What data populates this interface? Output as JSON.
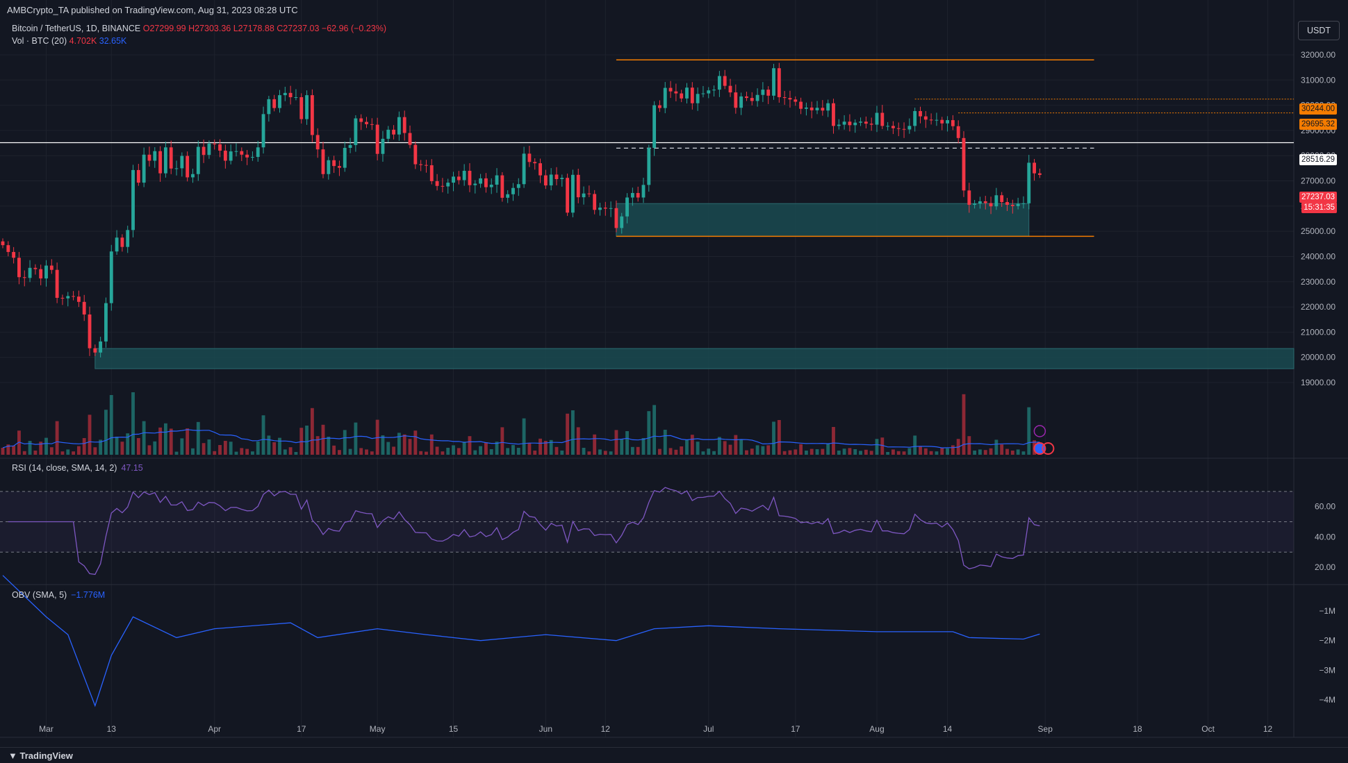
{
  "publisher_line": "AMBCrypto_TA published on TradingView.com, Aug 31, 2023 08:28 UTC",
  "symbol": {
    "title": "Bitcoin / TetherUS, 1D, BINANCE",
    "ohlc": "O27299.99 H27303.36 L27178.88 C27237.03 −62.96 (−0.23%)"
  },
  "volume_indicator": {
    "label": "Vol · BTC (20)",
    "value1": "4.702K",
    "value2": "32.65K"
  },
  "rsi_indicator": {
    "label": "RSI (14, close, SMA, 14, 2)",
    "value": "47.15"
  },
  "obv_indicator": {
    "label": "OBV (SMA, 5)",
    "value": "−1.776M"
  },
  "currency_button": "USDT",
  "footer_brand": "TradingView",
  "colors": {
    "bg": "#131722",
    "up": "#26a69a",
    "down": "#f23645",
    "orange": "#f57c00",
    "zone": "#1d4d55",
    "rsi": "#7e57c2",
    "obv": "#2962ff",
    "grid": "#1e222d"
  },
  "chart_data": [
    {
      "type": "candlestick",
      "title": "Bitcoin / TetherUS, 1D, BINANCE",
      "y_ticks": [
        32000,
        31000,
        30000,
        29000,
        28000,
        27000,
        26000,
        25000,
        24000,
        23000,
        22000,
        21000,
        20000,
        19000
      ],
      "y_tick_labels": [
        "32000.00",
        "31000.00",
        "30000.00",
        "29000.00",
        "28000.00",
        "27000.00",
        "26000.00",
        "25000.00",
        "24000.00",
        "23000.00",
        "22000.00",
        "21000.00",
        "20000.00",
        "19000.00"
      ],
      "x_tick_labels": [
        "Mar",
        "13",
        "Apr",
        "17",
        "May",
        "15",
        "Jun",
        "12",
        "Jul",
        "17",
        "Aug",
        "14",
        "Sep",
        "18",
        "Oct",
        "12"
      ],
      "x_tick_dates": [
        "2023-03-01",
        "2023-03-13",
        "2023-04-01",
        "2023-04-17",
        "2023-05-01",
        "2023-05-15",
        "2023-06-01",
        "2023-06-12",
        "2023-07-01",
        "2023-07-17",
        "2023-08-01",
        "2023-08-14",
        "2023-09-01",
        "2023-09-18",
        "2023-10-01",
        "2023-10-12"
      ],
      "date_range": [
        "2023-02-21",
        "2023-10-15"
      ],
      "closes": [
        [
          "2023-02-21",
          24450
        ],
        [
          "2023-02-22",
          24180
        ],
        [
          "2023-02-23",
          23950
        ],
        [
          "2023-02-24",
          23180
        ],
        [
          "2023-02-25",
          23150
        ],
        [
          "2023-02-26",
          23550
        ],
        [
          "2023-02-27",
          23500
        ],
        [
          "2023-02-28",
          23130
        ],
        [
          "2023-03-01",
          23640
        ],
        [
          "2023-03-02",
          23470
        ],
        [
          "2023-03-03",
          22360
        ],
        [
          "2023-03-04",
          22340
        ],
        [
          "2023-03-05",
          22430
        ],
        [
          "2023-03-06",
          22410
        ],
        [
          "2023-03-07",
          22200
        ],
        [
          "2023-03-08",
          21700
        ],
        [
          "2023-03-09",
          20360
        ],
        [
          "2023-03-10",
          20190
        ],
        [
          "2023-03-11",
          20630
        ],
        [
          "2023-03-12",
          22150
        ],
        [
          "2023-03-13",
          24200
        ],
        [
          "2023-03-14",
          24750
        ],
        [
          "2023-03-15",
          24380
        ],
        [
          "2023-03-16",
          25050
        ],
        [
          "2023-03-17",
          27430
        ],
        [
          "2023-03-18",
          26930
        ],
        [
          "2023-03-19",
          28040
        ],
        [
          "2023-03-20",
          27800
        ],
        [
          "2023-03-21",
          28180
        ],
        [
          "2023-03-22",
          27300
        ],
        [
          "2023-03-23",
          28330
        ],
        [
          "2023-03-24",
          27490
        ],
        [
          "2023-03-25",
          27500
        ],
        [
          "2023-03-26",
          27990
        ],
        [
          "2023-03-27",
          27140
        ],
        [
          "2023-03-28",
          27270
        ],
        [
          "2023-03-29",
          28350
        ],
        [
          "2023-03-30",
          28030
        ],
        [
          "2023-03-31",
          28480
        ],
        [
          "2023-04-01",
          28450
        ],
        [
          "2023-04-02",
          28200
        ],
        [
          "2023-04-03",
          27800
        ],
        [
          "2023-04-04",
          28170
        ],
        [
          "2023-04-05",
          28180
        ],
        [
          "2023-04-06",
          28040
        ],
        [
          "2023-04-07",
          27930
        ],
        [
          "2023-04-08",
          27950
        ],
        [
          "2023-04-09",
          28330
        ],
        [
          "2023-04-10",
          29650
        ],
        [
          "2023-04-11",
          30240
        ],
        [
          "2023-04-12",
          29890
        ],
        [
          "2023-04-13",
          30400
        ],
        [
          "2023-04-14",
          30490
        ],
        [
          "2023-04-15",
          30320
        ],
        [
          "2023-04-16",
          30320
        ],
        [
          "2023-04-17",
          29450
        ],
        [
          "2023-04-18",
          30400
        ],
        [
          "2023-04-19",
          28820
        ],
        [
          "2023-04-20",
          28250
        ],
        [
          "2023-04-21",
          27270
        ],
        [
          "2023-04-22",
          27820
        ],
        [
          "2023-04-23",
          27590
        ],
        [
          "2023-04-24",
          27520
        ],
        [
          "2023-04-25",
          28310
        ],
        [
          "2023-04-26",
          28420
        ],
        [
          "2023-04-27",
          29480
        ],
        [
          "2023-04-28",
          29340
        ],
        [
          "2023-04-29",
          29250
        ],
        [
          "2023-04-30",
          29230
        ],
        [
          "2023-05-01",
          28070
        ],
        [
          "2023-05-02",
          28670
        ],
        [
          "2023-05-03",
          29030
        ],
        [
          "2023-05-04",
          28840
        ],
        [
          "2023-05-05",
          29530
        ],
        [
          "2023-05-06",
          28900
        ],
        [
          "2023-05-07",
          28430
        ],
        [
          "2023-05-08",
          27660
        ],
        [
          "2023-05-09",
          27630
        ],
        [
          "2023-05-10",
          27620
        ],
        [
          "2023-05-11",
          26990
        ],
        [
          "2023-05-12",
          26800
        ],
        [
          "2023-05-13",
          26780
        ],
        [
          "2023-05-14",
          26930
        ],
        [
          "2023-05-15",
          27170
        ],
        [
          "2023-05-16",
          27030
        ],
        [
          "2023-05-17",
          27400
        ],
        [
          "2023-05-18",
          26830
        ],
        [
          "2023-05-19",
          26890
        ],
        [
          "2023-05-20",
          27100
        ],
        [
          "2023-05-21",
          26750
        ],
        [
          "2023-05-22",
          26850
        ],
        [
          "2023-05-23",
          27220
        ],
        [
          "2023-05-24",
          26330
        ],
        [
          "2023-05-25",
          26470
        ],
        [
          "2023-05-26",
          26720
        ],
        [
          "2023-05-27",
          26870
        ],
        [
          "2023-05-28",
          28080
        ],
        [
          "2023-05-29",
          27750
        ],
        [
          "2023-05-30",
          27700
        ],
        [
          "2023-05-31",
          27220
        ],
        [
          "2023-06-01",
          26820
        ],
        [
          "2023-06-02",
          27250
        ],
        [
          "2023-06-03",
          27070
        ],
        [
          "2023-06-04",
          27120
        ],
        [
          "2023-06-05",
          25740
        ],
        [
          "2023-06-06",
          27240
        ],
        [
          "2023-06-07",
          26350
        ],
        [
          "2023-06-08",
          26500
        ],
        [
          "2023-06-09",
          26480
        ],
        [
          "2023-06-10",
          25850
        ],
        [
          "2023-06-11",
          25940
        ],
        [
          "2023-06-12",
          25900
        ],
        [
          "2023-06-13",
          25920
        ],
        [
          "2023-06-14",
          25130
        ],
        [
          "2023-06-15",
          25590
        ],
        [
          "2023-06-16",
          26340
        ],
        [
          "2023-06-17",
          26520
        ],
        [
          "2023-06-18",
          26340
        ],
        [
          "2023-06-19",
          26840
        ],
        [
          "2023-06-20",
          28310
        ],
        [
          "2023-06-21",
          30000
        ],
        [
          "2023-06-22",
          29890
        ],
        [
          "2023-06-23",
          30690
        ],
        [
          "2023-06-24",
          30550
        ],
        [
          "2023-06-25",
          30470
        ],
        [
          "2023-06-26",
          30270
        ],
        [
          "2023-06-27",
          30700
        ],
        [
          "2023-06-28",
          30080
        ],
        [
          "2023-06-29",
          30450
        ],
        [
          "2023-06-30",
          30470
        ],
        [
          "2023-07-01",
          30590
        ],
        [
          "2023-07-02",
          30620
        ],
        [
          "2023-07-03",
          31160
        ],
        [
          "2023-07-04",
          30770
        ],
        [
          "2023-07-05",
          30510
        ],
        [
          "2023-07-06",
          29900
        ],
        [
          "2023-07-07",
          30350
        ],
        [
          "2023-07-08",
          30290
        ],
        [
          "2023-07-09",
          30170
        ],
        [
          "2023-07-10",
          30410
        ],
        [
          "2023-07-11",
          30620
        ],
        [
          "2023-07-12",
          30380
        ],
        [
          "2023-07-13",
          31470
        ],
        [
          "2023-07-14",
          30320
        ],
        [
          "2023-07-15",
          30290
        ],
        [
          "2023-07-16",
          30230
        ],
        [
          "2023-07-17",
          30140
        ],
        [
          "2023-07-18",
          29860
        ],
        [
          "2023-07-19",
          29910
        ],
        [
          "2023-07-20",
          29800
        ],
        [
          "2023-07-21",
          29900
        ],
        [
          "2023-07-22",
          29790
        ],
        [
          "2023-07-23",
          30080
        ],
        [
          "2023-07-24",
          29180
        ],
        [
          "2023-07-25",
          29230
        ],
        [
          "2023-07-26",
          29350
        ],
        [
          "2023-07-27",
          29210
        ],
        [
          "2023-07-28",
          29310
        ],
        [
          "2023-07-29",
          29350
        ],
        [
          "2023-07-30",
          29270
        ],
        [
          "2023-07-31",
          29230
        ],
        [
          "2023-08-01",
          29700
        ],
        [
          "2023-08-02",
          29180
        ],
        [
          "2023-08-03",
          29180
        ],
        [
          "2023-08-04",
          29090
        ],
        [
          "2023-08-05",
          29060
        ],
        [
          "2023-08-06",
          29040
        ],
        [
          "2023-08-07",
          29180
        ],
        [
          "2023-08-08",
          29770
        ],
        [
          "2023-08-09",
          29560
        ],
        [
          "2023-08-10",
          29430
        ],
        [
          "2023-08-11",
          29400
        ],
        [
          "2023-08-12",
          29420
        ],
        [
          "2023-08-13",
          29280
        ],
        [
          "2023-08-14",
          29410
        ],
        [
          "2023-08-15",
          29170
        ],
        [
          "2023-08-16",
          28700
        ],
        [
          "2023-08-17",
          26620
        ],
        [
          "2023-08-18",
          26050
        ],
        [
          "2023-08-19",
          26100
        ],
        [
          "2023-08-20",
          26190
        ],
        [
          "2023-08-21",
          26120
        ],
        [
          "2023-08-22",
          25990
        ],
        [
          "2023-08-23",
          26430
        ],
        [
          "2023-08-24",
          26160
        ],
        [
          "2023-08-25",
          26050
        ],
        [
          "2023-08-26",
          26000
        ],
        [
          "2023-08-27",
          26090
        ],
        [
          "2023-08-28",
          26110
        ],
        [
          "2023-08-29",
          27720
        ],
        [
          "2023-08-30",
          27300
        ],
        [
          "2023-08-31",
          27237
        ]
      ],
      "horizontal_levels": {
        "range_high": 31800,
        "range_low": 24800,
        "resistance_white": 28516.29,
        "dashed_mid": 28300,
        "orange_dotted_1": 30244.0,
        "orange_dotted_2": 29695.32
      },
      "zones": [
        {
          "from": "2023-06-14",
          "to": "2023-08-29",
          "low": 24800,
          "high": 26100
        },
        {
          "from": "2023-03-10",
          "to": "2023-10-15",
          "low": 19550,
          "high": 20350
        }
      ],
      "price_labels": [
        {
          "value": "30244.00",
          "kind": "orange",
          "price": 30244.0
        },
        {
          "value": "29695.32",
          "kind": "orange",
          "price": 29695.32
        },
        {
          "value": "28516.29",
          "kind": "white",
          "price": 28516.29
        },
        {
          "value": "27237.03",
          "kind": "red",
          "price": 27237.03
        },
        {
          "value": "15:31:35",
          "kind": "red-countdown"
        }
      ]
    },
    {
      "type": "line",
      "title": "RSI (14, close, SMA, 14, 2)",
      "y_ticks": [
        60,
        40,
        20
      ],
      "y_tick_labels": [
        "60.00",
        "40.00",
        "20.00"
      ],
      "band": [
        30,
        70
      ],
      "last_value": 47.15
    },
    {
      "type": "line",
      "title": "OBV (SMA, 5)",
      "y_ticks": [
        -1,
        -2,
        -3,
        -4
      ],
      "y_tick_labels": [
        "−1M",
        "−2M",
        "−3M",
        "−4M"
      ],
      "unit": "M",
      "series": [
        {
          "values": [
            [
              "2023-02-21",
              0.2
            ],
            [
              "2023-03-01",
              -1.2
            ],
            [
              "2023-03-05",
              -1.8
            ],
            [
              "2023-03-10",
              -4.2
            ],
            [
              "2023-03-13",
              -2.5
            ],
            [
              "2023-03-17",
              -1.2
            ],
            [
              "2023-03-25",
              -1.9
            ],
            [
              "2023-04-01",
              -1.6
            ],
            [
              "2023-04-15",
              -1.4
            ],
            [
              "2023-04-20",
              -1.9
            ],
            [
              "2023-05-01",
              -1.6
            ],
            [
              "2023-05-10",
              -1.8
            ],
            [
              "2023-05-20",
              -2.0
            ],
            [
              "2023-06-01",
              -1.8
            ],
            [
              "2023-06-14",
              -2.0
            ],
            [
              "2023-06-21",
              -1.6
            ],
            [
              "2023-07-01",
              -1.5
            ],
            [
              "2023-07-14",
              -1.6
            ],
            [
              "2023-08-01",
              -1.7
            ],
            [
              "2023-08-15",
              -1.7
            ],
            [
              "2023-08-18",
              -1.9
            ],
            [
              "2023-08-28",
              -1.95
            ],
            [
              "2023-08-31",
              -1.78
            ]
          ]
        }
      ]
    }
  ]
}
